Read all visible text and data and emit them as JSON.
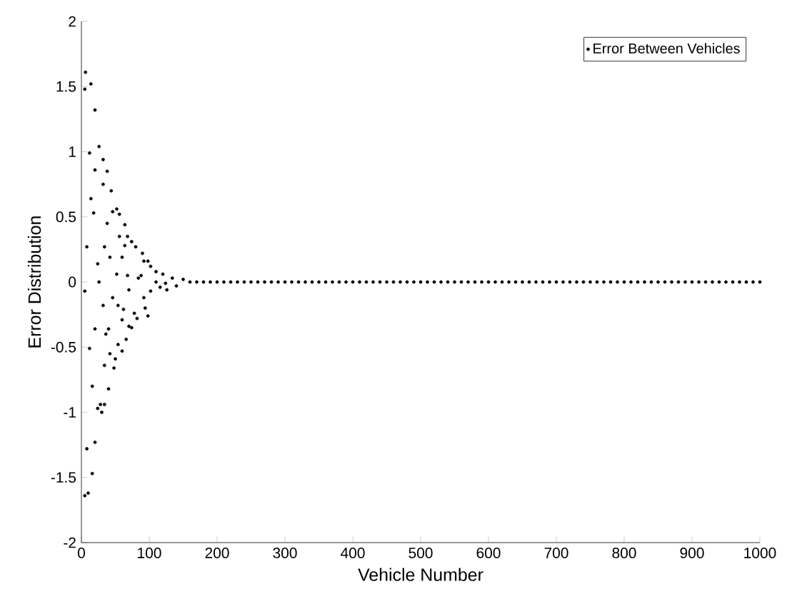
{
  "chart_data": {
    "type": "scatter",
    "xlabel": "Vehicle Number",
    "ylabel": "Error Distribution",
    "xlim": [
      0,
      1000
    ],
    "ylim": [
      -2,
      2
    ],
    "xticks": [
      0,
      100,
      200,
      300,
      400,
      500,
      600,
      700,
      800,
      900,
      1000
    ],
    "yticks": [
      -2,
      -1.5,
      -1,
      -0.5,
      0,
      0.5,
      1,
      1.5,
      2
    ],
    "legend": "top right",
    "marker": "circle",
    "grid": false,
    "series": [
      {
        "name": "Error Between Vehicles",
        "color": "#000000",
        "x": [
          6,
          5,
          14,
          20,
          26,
          12,
          32,
          20,
          38,
          32,
          44,
          14,
          18,
          46,
          52,
          56,
          38,
          64,
          8,
          34,
          56,
          68,
          74,
          64,
          80,
          42,
          60,
          90,
          92,
          98,
          24,
          52,
          68,
          102,
          110,
          120,
          88,
          134,
          150,
          5,
          26,
          32,
          46,
          54,
          70,
          62,
          84,
          92,
          102,
          78,
          94,
          60,
          82,
          98,
          70,
          74,
          20,
          36,
          40,
          66,
          54,
          60,
          42,
          50,
          34,
          48,
          12,
          16,
          40,
          24,
          28,
          34,
          30,
          20,
          8,
          16,
          5,
          10,
          116,
          126,
          124,
          110,
          140,
          160,
          170,
          180,
          190,
          200,
          210,
          220,
          230,
          240,
          250,
          260,
          270,
          280,
          290,
          300,
          310,
          320,
          330,
          340,
          350,
          360,
          370,
          380,
          390,
          400,
          410,
          420,
          430,
          440,
          450,
          460,
          470,
          480,
          490,
          500,
          510,
          520,
          530,
          540,
          550,
          560,
          570,
          580,
          590,
          600,
          610,
          620,
          630,
          640,
          650,
          660,
          670,
          680,
          690,
          700,
          710,
          720,
          730,
          740,
          750,
          760,
          770,
          780,
          790,
          800,
          810,
          820,
          830,
          840,
          850,
          860,
          870,
          880,
          890,
          900,
          910,
          920,
          930,
          940,
          950,
          960,
          970,
          980,
          990,
          1000
        ],
        "values": [
          1.61,
          1.48,
          1.52,
          1.32,
          1.04,
          0.99,
          0.94,
          0.86,
          0.85,
          0.75,
          0.7,
          0.64,
          0.53,
          0.54,
          0.56,
          0.52,
          0.45,
          0.44,
          0.27,
          0.27,
          0.35,
          0.35,
          0.31,
          0.28,
          0.27,
          0.19,
          0.19,
          0.22,
          0.16,
          0.16,
          0.14,
          0.06,
          0.05,
          0.12,
          0.08,
          0.06,
          0.05,
          0.03,
          0.02,
          -0.07,
          0.0,
          -0.18,
          -0.12,
          -0.18,
          -0.06,
          -0.21,
          0.03,
          -0.12,
          -0.07,
          -0.24,
          -0.2,
          -0.29,
          -0.28,
          -0.26,
          -0.34,
          -0.35,
          -0.36,
          -0.4,
          -0.36,
          -0.44,
          -0.48,
          -0.53,
          -0.55,
          -0.59,
          -0.64,
          -0.66,
          -0.51,
          -0.8,
          -0.82,
          -0.97,
          -0.94,
          -0.94,
          -1.0,
          -1.23,
          -1.28,
          -1.47,
          -1.64,
          -1.62,
          -0.04,
          -0.06,
          -0.01,
          0.0,
          -0.03,
          0,
          0,
          0,
          0,
          0,
          0,
          0,
          0,
          0,
          0,
          0,
          0,
          0,
          0,
          0,
          0,
          0,
          0,
          0,
          0,
          0,
          0,
          0,
          0,
          0,
          0,
          0,
          0,
          0,
          0,
          0,
          0,
          0,
          0,
          0,
          0,
          0,
          0,
          0,
          0,
          0,
          0,
          0,
          0,
          0,
          0,
          0,
          0,
          0,
          0,
          0,
          0,
          0,
          0,
          0,
          0,
          0,
          0,
          0,
          0,
          0,
          0,
          0,
          0,
          0,
          0,
          0,
          0,
          0,
          0,
          0,
          0,
          0,
          0,
          0,
          0,
          0,
          0,
          0,
          0,
          0,
          0,
          0,
          0,
          0
        ]
      }
    ]
  }
}
